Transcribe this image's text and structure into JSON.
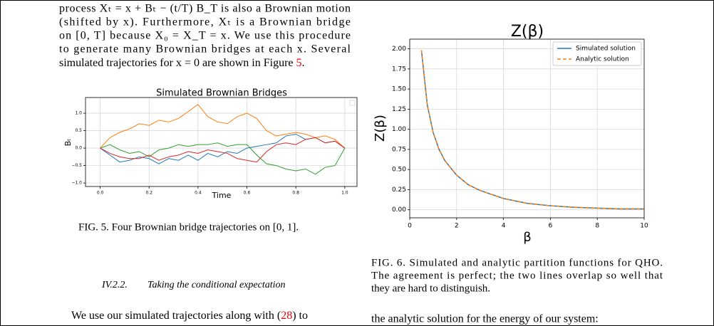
{
  "left_column": {
    "lines": [
      "process Xₜ = x + Bₜ − (t/T) B_T is also a Brownian motion",
      "(shifted by x).  Furthermore, Xₜ is a Brownian bridge",
      "on [0, T] because X₀ = X_T = x.  We use this procedure",
      "to generate many Brownian bridges at each x.  Several"
    ],
    "last_line": {
      "text": "simulated trajectories for x = 0 are shown in Figure ",
      "ref": "5",
      "after": "."
    },
    "figure_caption": "FIG. 5. Four Brownian bridge trajectories on [0, 1].",
    "section": {
      "number": "IV.2.2.",
      "title": "Taking the conditional expectation"
    },
    "bottom_line": {
      "text": "We use our simulated trajectories along with (",
      "ref": "28",
      "after": ") to"
    }
  },
  "right_column": {
    "figure_caption": [
      "FIG. 6. Simulated and analytic partition functions for QHO.",
      "The agreement is perfect; the two lines overlap so well that",
      "they are hard to distinguish."
    ],
    "bottom_line": "the analytic solution for the energy of our system:"
  },
  "chart_data": [
    {
      "type": "line",
      "title": "Simulated Brownian Bridges",
      "xlabel": "Time",
      "ylabel": "Bₜ",
      "x": [
        0,
        0.04,
        0.08,
        0.12,
        0.16,
        0.2,
        0.24,
        0.28,
        0.32,
        0.36,
        0.4,
        0.44,
        0.48,
        0.52,
        0.56,
        0.6,
        0.64,
        0.68,
        0.72,
        0.76,
        0.8,
        0.84,
        0.88,
        0.92,
        0.96,
        1.0
      ],
      "series": [
        {
          "color": "#1f77b4",
          "values": [
            0,
            -0.2,
            -0.4,
            -0.35,
            -0.25,
            -0.3,
            -0.45,
            -0.3,
            -0.35,
            -0.2,
            -0.35,
            -0.15,
            -0.25,
            -0.1,
            -0.15,
            0.0,
            0.05,
            0.1,
            0.15,
            0.35,
            0.4,
            0.25,
            0.3,
            0.15,
            0.2,
            0
          ]
        },
        {
          "color": "#ff7f0e",
          "values": [
            0,
            0.3,
            0.45,
            0.55,
            0.7,
            0.65,
            0.8,
            0.75,
            0.85,
            1.05,
            1.25,
            0.9,
            0.75,
            0.7,
            0.9,
            1.0,
            0.85,
            0.5,
            0.35,
            0.4,
            0.45,
            0.4,
            0.3,
            0.35,
            0.25,
            0
          ]
        },
        {
          "color": "#2ca02c",
          "values": [
            0,
            0.1,
            -0.05,
            -0.15,
            -0.1,
            -0.25,
            -0.05,
            0.0,
            0.1,
            0.05,
            0.1,
            0.1,
            0.15,
            0.05,
            0.1,
            0.1,
            -0.2,
            -0.45,
            -0.5,
            -0.6,
            -0.65,
            -0.6,
            -0.75,
            -0.55,
            -0.5,
            0
          ]
        },
        {
          "color": "#d62728",
          "values": [
            0,
            -0.15,
            -0.25,
            -0.3,
            -0.3,
            -0.2,
            -0.35,
            -0.25,
            -0.2,
            -0.1,
            -0.15,
            -0.05,
            -0.1,
            -0.15,
            -0.3,
            -0.35,
            -0.4,
            -0.1,
            0.1,
            0.15,
            0.1,
            0.25,
            0.3,
            0.15,
            0.2,
            0
          ]
        }
      ],
      "xlim": [
        -0.06,
        1.05
      ],
      "ylim": [
        -1.1,
        1.45
      ],
      "xticks": [
        {
          "value": 0,
          "label": "0.0"
        },
        {
          "value": 0.2,
          "label": "0.2"
        },
        {
          "value": 0.4,
          "label": "0.4"
        },
        {
          "value": 0.6,
          "label": "0.6"
        },
        {
          "value": 0.8,
          "label": "0.8"
        },
        {
          "value": 1.0,
          "label": "1.0"
        }
      ],
      "yticks": [
        {
          "value": -1,
          "label": "−1.0"
        },
        {
          "value": -0.5,
          "label": "−0.5"
        },
        {
          "value": 0,
          "label": "0.0"
        },
        {
          "value": 0.5,
          "label": "0.5"
        },
        {
          "value": 1,
          "label": "1.0"
        }
      ],
      "grid": true
    },
    {
      "type": "line",
      "title": "Z(β)",
      "xlabel": "β",
      "ylabel": "Z(β)",
      "x": [
        0.5,
        0.75,
        1,
        1.25,
        1.5,
        2,
        2.5,
        3,
        4,
        5,
        6,
        7,
        8,
        9,
        10
      ],
      "series": [
        {
          "name": "Simulated solution",
          "color": "#1f77b4",
          "linestyle": "solid",
          "values": [
            1.98,
            1.3,
            0.96,
            0.75,
            0.61,
            0.43,
            0.31,
            0.24,
            0.14,
            0.08,
            0.05,
            0.03,
            0.02,
            0.01,
            0.01
          ]
        },
        {
          "name": "Analytic solution",
          "color": "#ff7f0e",
          "linestyle": "dashed",
          "values": [
            1.98,
            1.3,
            0.96,
            0.75,
            0.61,
            0.43,
            0.31,
            0.24,
            0.14,
            0.08,
            0.05,
            0.03,
            0.02,
            0.01,
            0.01
          ]
        }
      ],
      "xlim": [
        0,
        10
      ],
      "ylim": [
        -0.1,
        2.12
      ],
      "xticks": [
        0,
        2,
        4,
        6,
        8,
        10
      ],
      "yticks": [
        {
          "value": 0,
          "label": "0.00"
        },
        {
          "value": 0.25,
          "label": "0.25"
        },
        {
          "value": 0.5,
          "label": "0.50"
        },
        {
          "value": 0.75,
          "label": "0.75"
        },
        {
          "value": 1,
          "label": "1.00"
        },
        {
          "value": 1.25,
          "label": "1.25"
        },
        {
          "value": 1.5,
          "label": "1.50"
        },
        {
          "value": 1.75,
          "label": "1.75"
        },
        {
          "value": 2,
          "label": "2.00"
        }
      ],
      "grid": true,
      "legend": "upper right"
    }
  ]
}
